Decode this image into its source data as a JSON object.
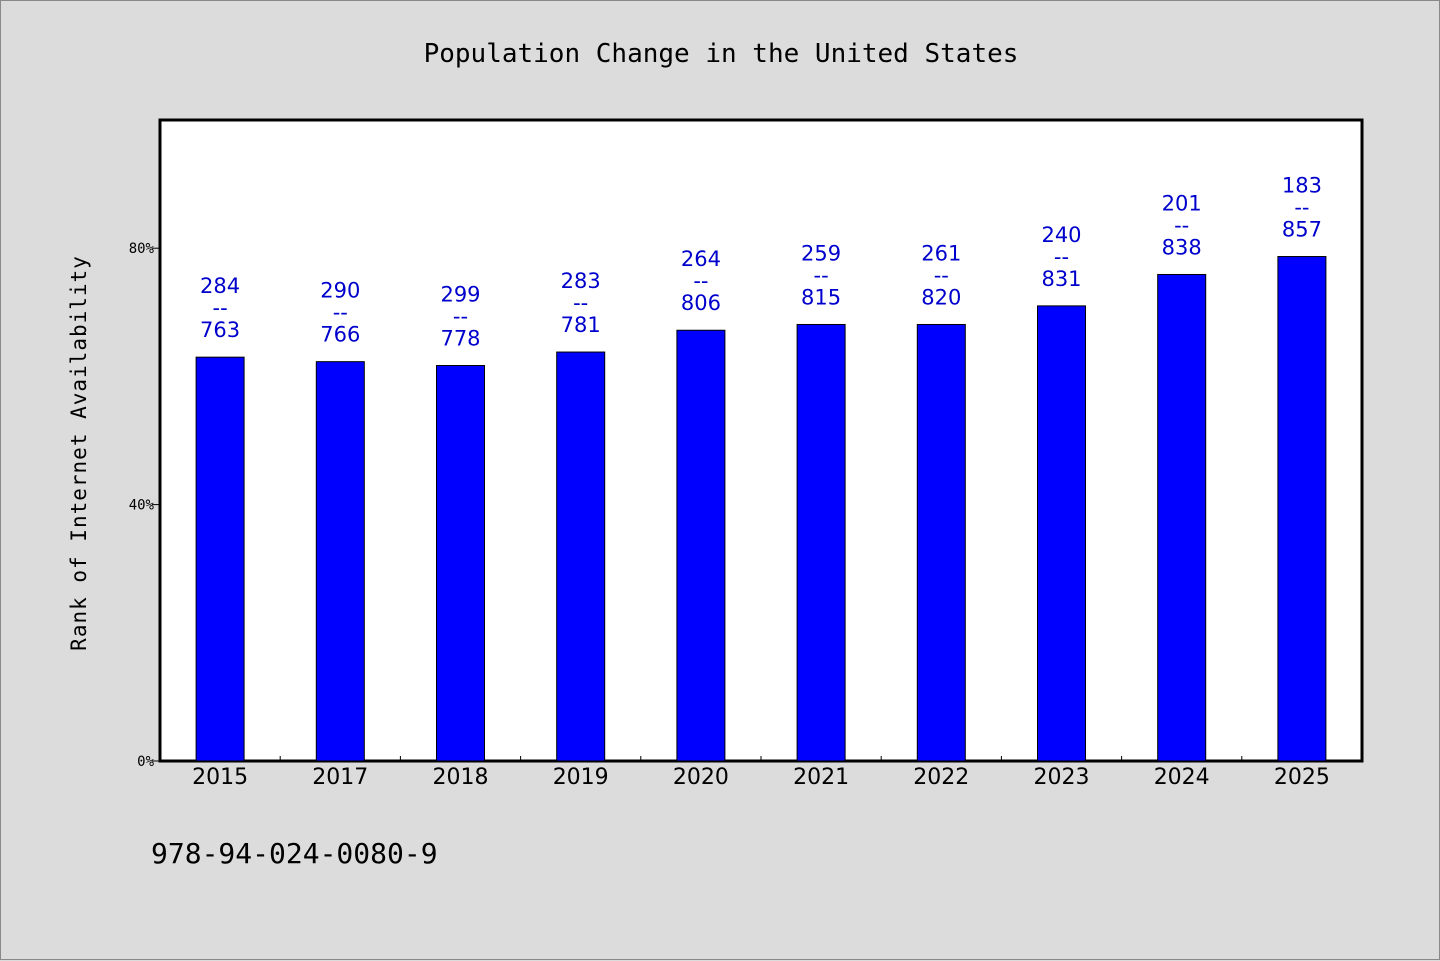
{
  "chart_data": {
    "type": "bar",
    "title": "Population Change in the United States",
    "xlabel": "",
    "ylabel": "Rank of Internet Availability",
    "categories": [
      "2015",
      "2017",
      "2018",
      "2019",
      "2020",
      "2021",
      "2022",
      "2023",
      "2024",
      "2025"
    ],
    "values": [
      63,
      62.3,
      61.7,
      63.8,
      67.2,
      68.1,
      68.1,
      71,
      75.9,
      78.7
    ],
    "data_labels": [
      [
        "284",
        "--",
        "763"
      ],
      [
        "290",
        "--",
        "766"
      ],
      [
        "299",
        "--",
        "778"
      ],
      [
        "283",
        "--",
        "781"
      ],
      [
        "264",
        "--",
        "806"
      ],
      [
        "259",
        "--",
        "815"
      ],
      [
        "261",
        "--",
        "820"
      ],
      [
        "240",
        "--",
        "831"
      ],
      [
        "201",
        "--",
        "838"
      ],
      [
        "183",
        "--",
        "857"
      ]
    ],
    "yticks": [
      0,
      40,
      80
    ],
    "ytick_labels": [
      "0%",
      "40%",
      "80%"
    ],
    "ylim": [
      0,
      100
    ],
    "grid": false,
    "bar_color": "#0000ff",
    "label_color": "#0000cc"
  },
  "footer": {
    "isbn": "978-94-024-0080-9"
  }
}
